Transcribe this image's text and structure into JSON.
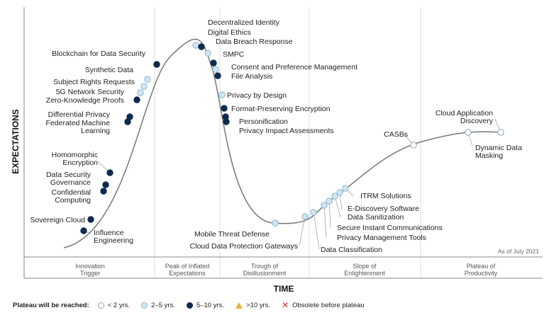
{
  "axes": {
    "y_title": "EXPECTATIONS",
    "x_title": "TIME"
  },
  "as_of": "As of July 2021",
  "phases": [
    {
      "lines": [
        "Innovation",
        "Trigger"
      ]
    },
    {
      "lines": [
        "Peak of Inflated",
        "Expectations"
      ]
    },
    {
      "lines": [
        "Trough of",
        "Disillusionment"
      ]
    },
    {
      "lines": [
        "Slope of",
        "Enlightenment"
      ]
    },
    {
      "lines": [
        "Plateau of",
        "Productivity"
      ]
    }
  ],
  "legend": {
    "title": "Plateau will be reached:",
    "items": [
      {
        "label": "< 2 yrs.",
        "icon": "circle-white"
      },
      {
        "label": "2–5 yrs.",
        "icon": "circle-light-blue"
      },
      {
        "label": "5–10 yrs.",
        "icon": "circle-dark-navy"
      },
      {
        "label": ">10 yrs.",
        "icon": "triangle-gold"
      },
      {
        "label": "Obsolete before plateau",
        "icon": "x-red"
      }
    ]
  },
  "colors": {
    "white": "#ffffff",
    "light": "#cfe6f3",
    "dark": "#0e2a4f",
    "curve": "#777777"
  },
  "technologies": [
    {
      "name": "Influence Engineering",
      "lines": [
        "Influence",
        "Engineering"
      ],
      "cat": "dark"
    },
    {
      "name": "Sovereign Cloud",
      "lines": [
        "Sovereign Cloud"
      ],
      "cat": "dark"
    },
    {
      "name": "Confidential Computing",
      "lines": [
        "Confidential",
        "Computing"
      ],
      "cat": "dark"
    },
    {
      "name": "Data Security Governance",
      "lines": [
        "Data Security",
        "Governance"
      ],
      "cat": "dark"
    },
    {
      "name": "Homomorphic Encryption",
      "lines": [
        "Homomorphic",
        "Encryption"
      ],
      "cat": "dark"
    },
    {
      "name": "Federated Machine Learning",
      "lines": [
        "Federated Machine",
        "Learning"
      ],
      "cat": "dark"
    },
    {
      "name": "Differential Privacy",
      "lines": [
        "Differential Privacy"
      ],
      "cat": "dark"
    },
    {
      "name": "Zero-Knowledge Proofs",
      "lines": [
        "Zero-Knowledge Proofs"
      ],
      "cat": "dark"
    },
    {
      "name": "5G Network Security",
      "lines": [
        "5G Network Security"
      ],
      "cat": "light"
    },
    {
      "name": "Subject Rights Requests",
      "lines": [
        "Subject Rights Requests"
      ],
      "cat": "light"
    },
    {
      "name": "Synthetic Data",
      "lines": [
        "Synthetic Data"
      ],
      "cat": "light"
    },
    {
      "name": "Blockchain for Data Security",
      "lines": [
        "Blockchain for Data Security"
      ],
      "cat": "dark"
    },
    {
      "name": "Decentralized Identity",
      "lines": [
        "Decentralized Identity"
      ],
      "cat": "light"
    },
    {
      "name": "Digital Ethics",
      "lines": [
        "Digital Ethics"
      ],
      "cat": "dark"
    },
    {
      "name": "Data Breach Response",
      "lines": [
        "Data Breach Response"
      ],
      "cat": "light"
    },
    {
      "name": "SMPC",
      "lines": [
        "SMPC"
      ],
      "cat": "dark"
    },
    {
      "name": "Consent and Preference Management",
      "lines": [
        "Consent and Preference Management"
      ],
      "cat": "light"
    },
    {
      "name": "File Analysis",
      "lines": [
        "File Analysis"
      ],
      "cat": "dark"
    },
    {
      "name": "Privacy by Design",
      "lines": [
        "Privacy by Design"
      ],
      "cat": "light"
    },
    {
      "name": "Format-Preserving Encryption",
      "lines": [
        "Format-Preserving Encryption"
      ],
      "cat": "dark"
    },
    {
      "name": "Personification",
      "lines": [
        "Personification"
      ],
      "cat": "dark"
    },
    {
      "name": "Privacy Impact Assessments",
      "lines": [
        "Privacy Impact Assessments"
      ],
      "cat": "dark"
    },
    {
      "name": "Mobile Threat Defense",
      "lines": [
        "Mobile Threat Defense"
      ],
      "cat": "light"
    },
    {
      "name": "Cloud Data Protection Gateways",
      "lines": [
        "Cloud Data Protection Gateways"
      ],
      "cat": "light"
    },
    {
      "name": "Data Classification",
      "lines": [
        "Data Classification"
      ],
      "cat": "light"
    },
    {
      "name": "Privacy Management Tools",
      "lines": [
        "Privacy Management Tools"
      ],
      "cat": "light"
    },
    {
      "name": "Secure Instant Communications",
      "lines": [
        "Secure Instant Communications"
      ],
      "cat": "light"
    },
    {
      "name": "Data Sanitization",
      "lines": [
        "Data Sanitization"
      ],
      "cat": "light"
    },
    {
      "name": "E-Discovery Software",
      "lines": [
        "E-Discovery Software"
      ],
      "cat": "light"
    },
    {
      "name": "ITRM Solutions",
      "lines": [
        "ITRM Solutions"
      ],
      "cat": "light"
    },
    {
      "name": "CASBs",
      "lines": [
        "CASBs"
      ],
      "cat": "white"
    },
    {
      "name": "Dynamic Data Masking",
      "lines": [
        "Dynamic Data",
        "Masking"
      ],
      "cat": "white"
    },
    {
      "name": "Cloud Application Discovery",
      "lines": [
        "Cloud Application",
        "Discovery"
      ],
      "cat": "white"
    }
  ]
}
